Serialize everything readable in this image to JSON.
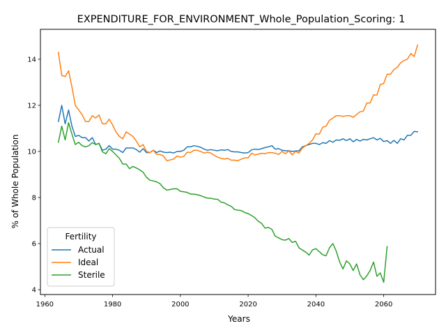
{
  "chart_data": {
    "type": "line",
    "title": "EXPENDITURE_FOR_ENVIRONMENT_Whole_Population_Scoring: 1",
    "xlabel": "Years",
    "ylabel": "% of Whole Population",
    "xlim": [
      1958.7,
      2075.3
    ],
    "ylim": [
      3.79,
      15.3
    ],
    "xticks": [
      1960,
      1980,
      2000,
      2020,
      2040,
      2060
    ],
    "yticks": [
      4,
      6,
      8,
      10,
      12,
      14
    ],
    "grid": false,
    "legend": {
      "title": "Fertility",
      "placement": "lower-left"
    },
    "series": [
      {
        "name": "Actual",
        "color": "#1f77b4",
        "x": [
          1964,
          1965,
          1966,
          1967,
          1968,
          1969,
          1970,
          1971,
          1972,
          1973,
          1974,
          1975,
          1976,
          1977,
          1978,
          1979,
          1980,
          1981,
          1982,
          1983,
          1984,
          1985,
          1986,
          1987,
          1988,
          1989,
          1990,
          1991,
          1992,
          1993,
          1994,
          1995,
          1996,
          1997,
          1998,
          1999,
          2000,
          2001,
          2002,
          2003,
          2004,
          2005,
          2006,
          2007,
          2008,
          2009,
          2010,
          2011,
          2012,
          2013,
          2014,
          2015,
          2016,
          2017,
          2018,
          2019,
          2020,
          2021,
          2022,
          2023,
          2024,
          2025,
          2026,
          2027,
          2028,
          2029,
          2030,
          2031,
          2032,
          2033,
          2034,
          2035,
          2036,
          2037,
          2038,
          2039,
          2040,
          2041,
          2042,
          2043,
          2044,
          2045,
          2046,
          2047,
          2048,
          2049,
          2050,
          2051,
          2052,
          2053,
          2054,
          2055,
          2056,
          2057,
          2058,
          2059,
          2060,
          2061,
          2062,
          2063,
          2064,
          2065,
          2066,
          2067,
          2068,
          2069,
          2070
        ],
        "y": [
          11.3,
          12.0,
          11.2,
          11.8,
          11.1,
          10.65,
          10.7,
          10.6,
          10.6,
          10.45,
          10.6,
          10.3,
          10.35,
          10.05,
          10.1,
          10.25,
          10.1,
          10.1,
          10.05,
          9.95,
          10.15,
          10.15,
          10.15,
          10.08,
          9.97,
          10.12,
          9.95,
          9.95,
          10.05,
          9.95,
          10.02,
          9.97,
          9.95,
          9.97,
          9.93,
          10.0,
          10.0,
          10.05,
          10.2,
          10.2,
          10.25,
          10.22,
          10.18,
          10.1,
          10.05,
          10.08,
          10.05,
          10.03,
          10.07,
          10.05,
          10.08,
          10.0,
          9.98,
          9.98,
          9.95,
          9.93,
          9.95,
          10.07,
          10.1,
          10.08,
          10.12,
          10.17,
          10.2,
          10.25,
          10.1,
          10.12,
          10.05,
          10.03,
          10.03,
          10.0,
          10.02,
          10.02,
          10.2,
          10.25,
          10.3,
          10.35,
          10.35,
          10.3,
          10.38,
          10.35,
          10.47,
          10.4,
          10.5,
          10.48,
          10.55,
          10.47,
          10.55,
          10.42,
          10.52,
          10.45,
          10.52,
          10.5,
          10.55,
          10.6,
          10.5,
          10.57,
          10.43,
          10.47,
          10.35,
          10.48,
          10.35,
          10.55,
          10.5,
          10.7,
          10.7,
          10.87,
          10.85
        ]
      },
      {
        "name": "Ideal",
        "color": "#ff7f0e",
        "x": [
          1964,
          1965,
          1966,
          1967,
          1968,
          1969,
          1970,
          1971,
          1972,
          1973,
          1974,
          1975,
          1976,
          1977,
          1978,
          1979,
          1980,
          1981,
          1982,
          1983,
          1984,
          1985,
          1986,
          1987,
          1988,
          1989,
          1990,
          1991,
          1992,
          1993,
          1994,
          1995,
          1996,
          1997,
          1998,
          1999,
          2000,
          2001,
          2002,
          2003,
          2004,
          2005,
          2006,
          2007,
          2008,
          2009,
          2010,
          2011,
          2012,
          2013,
          2014,
          2015,
          2016,
          2017,
          2018,
          2019,
          2020,
          2021,
          2022,
          2023,
          2024,
          2025,
          2026,
          2027,
          2028,
          2029,
          2030,
          2031,
          2032,
          2033,
          2034,
          2035,
          2036,
          2037,
          2038,
          2039,
          2040,
          2041,
          2042,
          2043,
          2044,
          2045,
          2046,
          2047,
          2048,
          2049,
          2050,
          2051,
          2052,
          2053,
          2054,
          2055,
          2056,
          2057,
          2058,
          2059,
          2060,
          2061,
          2062,
          2063,
          2064,
          2065,
          2066,
          2067,
          2068,
          2069,
          2070
        ],
        "y": [
          14.3,
          13.3,
          13.25,
          13.5,
          12.8,
          12.0,
          11.8,
          11.6,
          11.3,
          11.3,
          11.55,
          11.45,
          11.58,
          11.2,
          11.2,
          11.4,
          11.15,
          10.85,
          10.65,
          10.55,
          10.85,
          10.75,
          10.65,
          10.45,
          10.2,
          10.3,
          10.0,
          9.95,
          10.05,
          9.87,
          9.87,
          9.8,
          9.6,
          9.63,
          9.67,
          9.8,
          9.75,
          9.78,
          9.97,
          9.95,
          10.05,
          10.05,
          10.0,
          9.93,
          9.97,
          9.93,
          9.83,
          9.75,
          9.7,
          9.67,
          9.7,
          9.62,
          9.62,
          9.6,
          9.67,
          9.72,
          9.72,
          9.92,
          9.85,
          9.88,
          9.92,
          9.9,
          9.95,
          9.95,
          9.92,
          9.87,
          10.0,
          9.9,
          10.02,
          9.85,
          10.0,
          9.93,
          10.15,
          10.25,
          10.35,
          10.5,
          10.77,
          10.75,
          11.05,
          11.1,
          11.35,
          11.45,
          11.55,
          11.55,
          11.52,
          11.55,
          11.55,
          11.48,
          11.6,
          11.72,
          11.75,
          12.1,
          12.1,
          12.45,
          12.45,
          12.9,
          12.95,
          13.35,
          13.35,
          13.55,
          13.65,
          13.85,
          13.95,
          14.0,
          14.25,
          14.12,
          14.62
        ]
      },
      {
        "name": "Sterile",
        "color": "#2ca02c",
        "x": [
          1964,
          1965,
          1966,
          1967,
          1968,
          1969,
          1970,
          1971,
          1972,
          1973,
          1974,
          1975,
          1976,
          1977,
          1978,
          1979,
          1980,
          1981,
          1982,
          1983,
          1984,
          1985,
          1986,
          1987,
          1988,
          1989,
          1990,
          1991,
          1992,
          1993,
          1994,
          1995,
          1996,
          1997,
          1998,
          1999,
          2000,
          2001,
          2002,
          2003,
          2004,
          2005,
          2006,
          2007,
          2008,
          2009,
          2010,
          2011,
          2012,
          2013,
          2014,
          2015,
          2016,
          2017,
          2018,
          2019,
          2020,
          2021,
          2022,
          2023,
          2024,
          2025,
          2026,
          2027,
          2028,
          2029,
          2030,
          2031,
          2032,
          2033,
          2034,
          2035,
          2036,
          2037,
          2038,
          2039,
          2040,
          2041,
          2042,
          2043,
          2044,
          2045,
          2046,
          2047,
          2048,
          2049,
          2050,
          2051,
          2052,
          2053,
          2054,
          2055,
          2056,
          2057,
          2058,
          2059,
          2060,
          2061
        ],
        "y": [
          10.4,
          11.1,
          10.5,
          11.25,
          10.75,
          10.3,
          10.4,
          10.25,
          10.2,
          10.25,
          10.38,
          10.3,
          10.35,
          9.98,
          9.9,
          10.12,
          10.0,
          9.85,
          9.7,
          9.45,
          9.45,
          9.25,
          9.35,
          9.28,
          9.2,
          9.1,
          8.88,
          8.75,
          8.72,
          8.68,
          8.6,
          8.42,
          8.32,
          8.35,
          8.38,
          8.38,
          8.27,
          8.25,
          8.22,
          8.15,
          8.15,
          8.12,
          8.08,
          8.02,
          7.97,
          7.97,
          7.93,
          7.92,
          7.8,
          7.77,
          7.68,
          7.62,
          7.48,
          7.45,
          7.43,
          7.35,
          7.3,
          7.22,
          7.12,
          6.97,
          6.87,
          6.67,
          6.7,
          6.62,
          6.32,
          6.25,
          6.17,
          6.15,
          6.22,
          6.05,
          6.1,
          5.82,
          5.72,
          5.63,
          5.5,
          5.73,
          5.78,
          5.65,
          5.52,
          5.47,
          5.82,
          6.0,
          5.67,
          5.2,
          4.9,
          5.25,
          5.12,
          4.83,
          5.12,
          4.65,
          4.43,
          4.6,
          4.83,
          5.2,
          4.58,
          4.73,
          4.32,
          5.87
        ]
      }
    ]
  }
}
